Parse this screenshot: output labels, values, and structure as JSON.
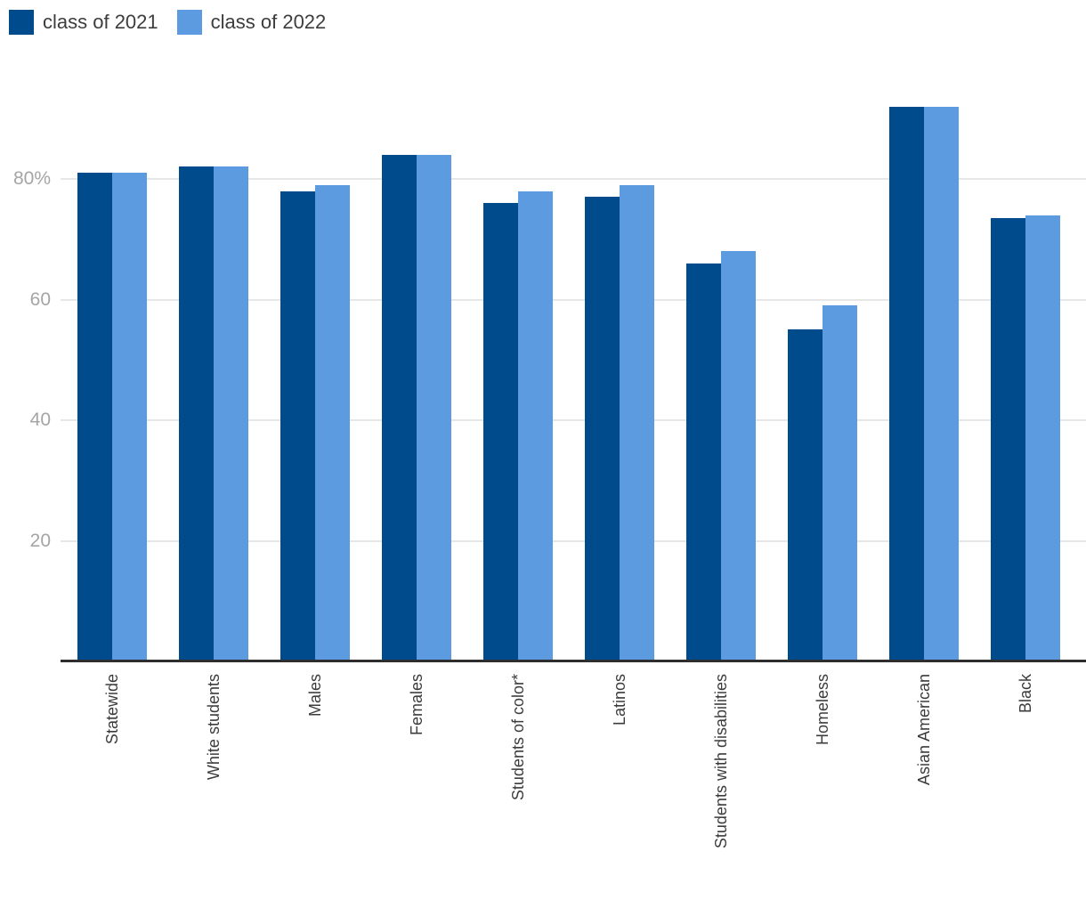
{
  "chart_data": {
    "type": "bar",
    "title": "",
    "xlabel": "",
    "ylabel": "",
    "categories": [
      "Statewide",
      "White students",
      "Males",
      "Females",
      "Students of color*",
      "Latinos",
      "Students with disabilities",
      "Homeless",
      "Asian American",
      "Black"
    ],
    "series": [
      {
        "name": "class of 2021",
        "color": "#004b8c",
        "values": [
          81,
          82,
          78,
          84,
          76,
          77,
          66,
          55,
          92,
          73.5
        ]
      },
      {
        "name": "class of 2022",
        "color": "#5d9be0",
        "values": [
          81,
          82,
          79,
          84,
          78,
          79,
          68,
          59,
          92,
          74
        ]
      }
    ],
    "ylim": [
      0,
      100
    ],
    "yticks": [
      {
        "value": 20,
        "label": "20"
      },
      {
        "value": 40,
        "label": "40"
      },
      {
        "value": 60,
        "label": "60"
      },
      {
        "value": 80,
        "label": "80%"
      }
    ],
    "grid": true,
    "legend_position": "top-left",
    "colors": {
      "gridline": "#e7e7e7",
      "axis_line": "#2e2e2e",
      "y_tick_text": "#a5a5a5",
      "category_text": "#3c3c3c",
      "background": "#ffffff"
    }
  }
}
